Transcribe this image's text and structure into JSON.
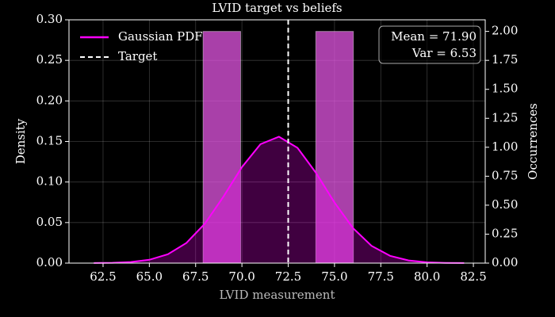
{
  "chart_data": {
    "type": "combo",
    "title": "LVID target vs beliefs",
    "x_label": "LVID measurement",
    "y_label": "Density",
    "y2_label": "Occurrences",
    "xlim": [
      60.66,
      83.14
    ],
    "xticks": [
      62.5,
      {
        "value": 65,
        "label": "65.0"
      },
      67.5,
      {
        "value": 70,
        "label": "70.0"
      },
      72.5,
      {
        "value": 75,
        "label": "75.0"
      },
      77.5,
      {
        "value": 80,
        "label": "80.0"
      },
      82.5
    ],
    "ylim": [
      0,
      0.3
    ],
    "yticks": [
      {
        "value": 0,
        "label": "0.00"
      },
      {
        "value": 0.05,
        "label": "0.05"
      },
      {
        "value": 0.1,
        "label": "0.10"
      },
      {
        "value": 0.15,
        "label": "0.15"
      },
      {
        "value": 0.2,
        "label": "0.20"
      },
      {
        "value": 0.25,
        "label": "0.25"
      },
      {
        "value": 0.3,
        "label": "0.30"
      }
    ],
    "y2lim": [
      0,
      2.1
    ],
    "y2ticks": [
      {
        "value": 0,
        "label": "0.00"
      },
      {
        "value": 0.25,
        "label": "0.25"
      },
      {
        "value": 0.5,
        "label": "0.50"
      },
      {
        "value": 0.75,
        "label": "0.75"
      },
      {
        "value": 1,
        "label": "1.00"
      },
      {
        "value": 1.25,
        "label": "1.25"
      },
      {
        "value": 1.5,
        "label": "1.50"
      },
      {
        "value": 1.75,
        "label": "1.75"
      },
      {
        "value": 2,
        "label": "2.00"
      }
    ],
    "grid": true,
    "legend": "upper left",
    "histogram": {
      "axis": "y2",
      "color": "#e256e2",
      "bins": [
        67.9,
        69.93,
        71.96,
        73.99,
        76.02
      ],
      "values": [
        2,
        0,
        0,
        2
      ]
    },
    "series": [
      {
        "name": "Gaussian PDF",
        "color": "#ff00ff",
        "x": [
          62,
          63,
          64,
          65,
          66,
          67,
          68,
          69,
          70,
          71,
          72,
          73,
          74,
          75,
          76,
          77,
          78,
          79,
          80,
          81,
          82
        ],
        "values": [
          0.0001,
          0.0004,
          0.0013,
          0.0041,
          0.0109,
          0.0248,
          0.0487,
          0.0819,
          0.1184,
          0.1466,
          0.1559,
          0.1422,
          0.1113,
          0.0747,
          0.0431,
          0.0213,
          0.009,
          0.0033,
          0.001,
          0.0003,
          0.0001
        ]
      }
    ],
    "target": {
      "name": "Target",
      "x": 72.5,
      "color": "#ffffff"
    },
    "annotation": [
      "Mean = 71.90",
      "Var = 6.53"
    ]
  }
}
